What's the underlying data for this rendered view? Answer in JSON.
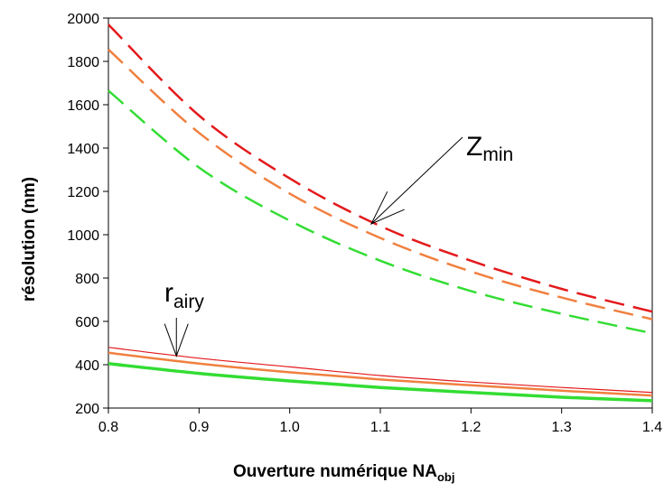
{
  "chart_data": {
    "type": "line",
    "xlabel": "Ouverture numérique NA",
    "xlabel_sub": "obj",
    "ylabel": "résolution (nm)",
    "xlim": [
      0.8,
      1.4
    ],
    "ylim": [
      200,
      2000
    ],
    "xticks": [
      "0.8",
      "0.9",
      "1.0",
      "1.1",
      "1.2",
      "1.3",
      "1.4"
    ],
    "yticks": [
      "200",
      "400",
      "600",
      "800",
      "1000",
      "1200",
      "1400",
      "1600",
      "1800",
      "2000"
    ],
    "grid": false,
    "x": [
      0.8,
      0.9,
      1.0,
      1.1,
      1.2,
      1.3,
      1.4
    ],
    "series": [
      {
        "group": "zmin",
        "color": "#e31a1c",
        "style": "dashed",
        "values": [
          1970,
          1550,
          1260,
          1040,
          880,
          750,
          645
        ]
      },
      {
        "group": "zmin",
        "color": "#f08040",
        "style": "dashed",
        "values": [
          1855,
          1470,
          1190,
          985,
          830,
          710,
          610
        ]
      },
      {
        "group": "zmin",
        "color": "#33dd33",
        "style": "dashed",
        "values": [
          1665,
          1310,
          1065,
          880,
          740,
          635,
          545
        ]
      },
      {
        "group": "rairy",
        "color": "#e31a1c",
        "style": "solid-thin",
        "values": [
          480,
          430,
          390,
          350,
          320,
          295,
          272
        ]
      },
      {
        "group": "rairy",
        "color": "#f08040",
        "style": "solid",
        "values": [
          455,
          405,
          365,
          332,
          305,
          280,
          258
        ]
      },
      {
        "group": "rairy",
        "color": "#33dd33",
        "style": "solid-thick",
        "values": [
          405,
          360,
          325,
          295,
          272,
          250,
          234
        ]
      }
    ],
    "annotations": [
      {
        "text": "Z",
        "sub": "min",
        "arrow_to_x": 1.09,
        "arrow_to_y": 1050
      },
      {
        "text": "r",
        "sub": "airy",
        "arrow_to_x": 0.875,
        "arrow_to_y": 440
      }
    ]
  }
}
